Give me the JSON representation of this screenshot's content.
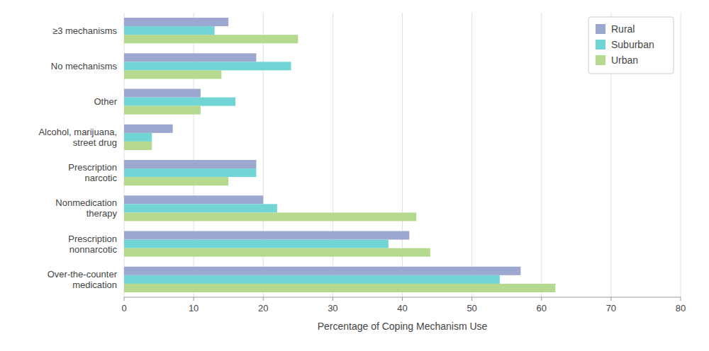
{
  "chart_data": {
    "type": "bar",
    "orientation": "horizontal",
    "categories": [
      "Over-the-counter\nmedication",
      "Prescription\nnonnarcotic",
      "Nonmedication\ntherapy",
      "Prescription\nnarcotic",
      "Alcohol, marijuana,\nstreet drug",
      "Other",
      "No mechanisms",
      "≥3 mechanisms"
    ],
    "series": [
      {
        "name": "Rural",
        "color": "#9da8d0",
        "values": [
          57,
          41,
          20,
          19,
          7,
          11,
          19,
          15
        ]
      },
      {
        "name": "Suburban",
        "color": "#72d5d5",
        "values": [
          54,
          38,
          22,
          19,
          4,
          16,
          24,
          13
        ]
      },
      {
        "name": "Urban",
        "color": "#b5d98e",
        "values": [
          62,
          44,
          42,
          15,
          4,
          11,
          14,
          25
        ]
      }
    ],
    "xlabel": "Percentage of Coping Mechanism Use",
    "xlim": [
      0,
      80
    ],
    "xticks": [
      0,
      10,
      20,
      30,
      40,
      50,
      60,
      70,
      80
    ],
    "grid": true,
    "legend": "upper right"
  }
}
